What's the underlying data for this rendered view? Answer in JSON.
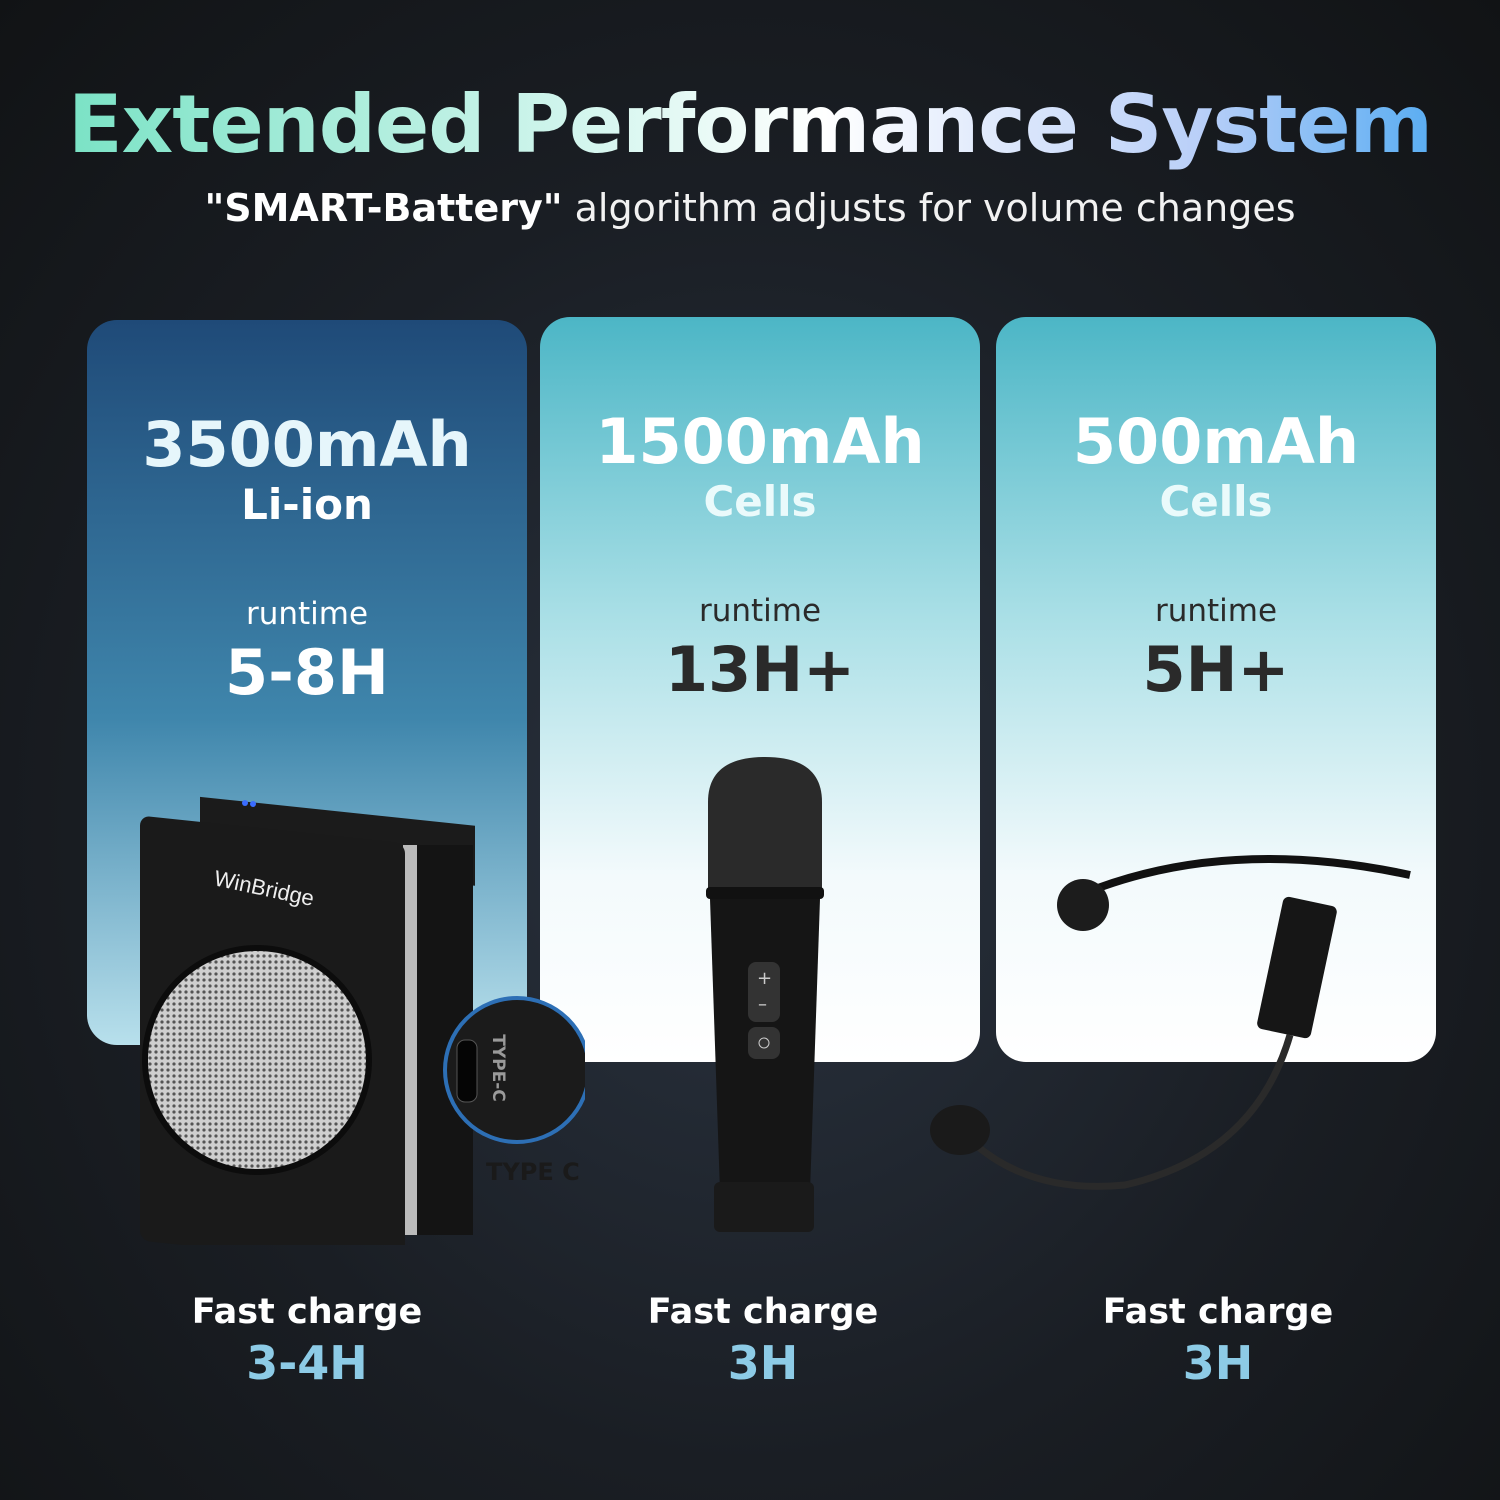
{
  "header": {
    "title": "Extended Performance System",
    "subtitle_bold": "\"SMART-Battery\"",
    "subtitle_rest": " algorithm adjusts for volume changes"
  },
  "cards": [
    {
      "capacity": "3500mAh",
      "chemistry": "Li-ion",
      "runtime_label": "runtime",
      "runtime": "5-8H",
      "charge_label": "Fast charge",
      "charge_time": "3-4H",
      "product": "speaker"
    },
    {
      "capacity": "1500mAh",
      "chemistry": "Cells",
      "runtime_label": "runtime",
      "runtime": "13H+",
      "charge_label": "Fast charge",
      "charge_time": "3H",
      "product": "handheld-microphone"
    },
    {
      "capacity": "500mAh",
      "chemistry": "Cells",
      "runtime_label": "runtime",
      "runtime": "5H+",
      "charge_label": "Fast charge",
      "charge_time": "3H",
      "product": "headset-microphone"
    }
  ],
  "speaker": {
    "brand": "WinBridge",
    "port_callout": "TYPE C",
    "port_label": "TYPE-C"
  },
  "colors": {
    "title_start": "#6fe0c0",
    "title_end": "#3ea3f0",
    "charge_value": "#8dcbe6",
    "card1_top": "#1f4a78",
    "card_teal": "#4cb6c6"
  }
}
